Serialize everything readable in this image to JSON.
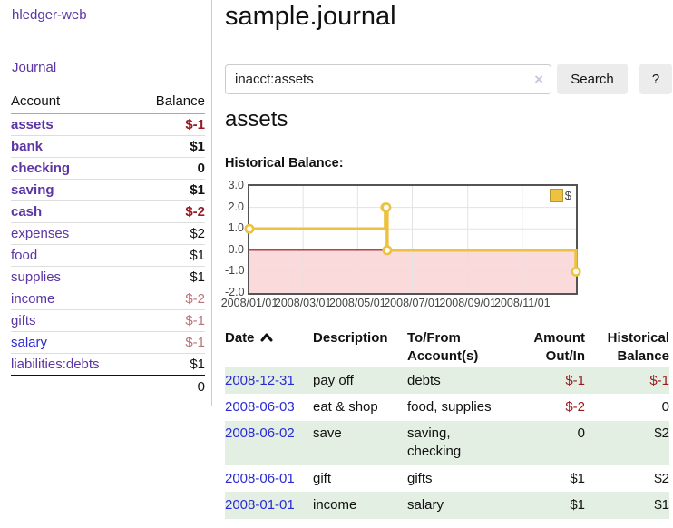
{
  "app": {
    "title": "hledger-web",
    "nav_journal": "Journal"
  },
  "sidebar": {
    "header": {
      "account": "Account",
      "balance": "Balance"
    },
    "rows": [
      {
        "name": "assets",
        "balance": "$-1",
        "indent": 1,
        "bold": true,
        "link": "purple"
      },
      {
        "name": "bank",
        "balance": "$1",
        "indent": 2,
        "bold": true,
        "link": "purple"
      },
      {
        "name": "checking",
        "balance": "0",
        "indent": 3,
        "bold": true,
        "link": "purple"
      },
      {
        "name": "saving",
        "balance": "$1",
        "indent": 3,
        "bold": true,
        "link": "purple"
      },
      {
        "name": "cash",
        "balance": "$-2",
        "indent": 2,
        "bold": true,
        "link": "purple"
      },
      {
        "name": "expenses",
        "balance": "$2",
        "indent": 1,
        "bold": false,
        "link": "purple"
      },
      {
        "name": "food",
        "balance": "$1",
        "indent": 2,
        "bold": false,
        "link": "purple"
      },
      {
        "name": "supplies",
        "balance": "$1",
        "indent": 2,
        "bold": false,
        "link": "purple"
      },
      {
        "name": "income",
        "balance": "$-2",
        "indent": 1,
        "bold": false,
        "link": "purple"
      },
      {
        "name": "gifts",
        "balance": "$-1",
        "indent": 2,
        "bold": false,
        "link": "purple"
      },
      {
        "name": "salary",
        "balance": "$-1",
        "indent": 2,
        "bold": false,
        "link": "blue"
      },
      {
        "name": "liabilities:debts",
        "balance": "$1",
        "indent": 1,
        "bold": false,
        "link": "purple"
      }
    ],
    "total": "0"
  },
  "header": {
    "title": "sample.journal"
  },
  "search": {
    "value": "inacct:assets",
    "clear_glyph": "×",
    "button_label": "Search",
    "help_label": "?"
  },
  "account_view": {
    "heading": "assets",
    "chart_label": "Historical Balance:"
  },
  "chart_data": {
    "type": "line",
    "title": "Historical Balance",
    "series": [
      {
        "name": "$",
        "color": "#edc240",
        "steps": true,
        "points": [
          {
            "date": "2008-01-01",
            "value": 1
          },
          {
            "date": "2008-06-01",
            "value": 2
          },
          {
            "date": "2008-06-02",
            "value": 2
          },
          {
            "date": "2008-06-03",
            "value": 0
          },
          {
            "date": "2008-12-31",
            "value": -1
          }
        ]
      }
    ],
    "x_range": [
      "2008-01-01",
      "2008-12-31"
    ],
    "ylim": [
      -2,
      3
    ],
    "y_ticks": [
      {
        "value": 3,
        "label": "3.0"
      },
      {
        "value": 2,
        "label": "2.0"
      },
      {
        "value": 1,
        "label": "1.0"
      },
      {
        "value": 0,
        "label": "0.0"
      },
      {
        "value": -1,
        "label": "-1.0"
      },
      {
        "value": -2,
        "label": "-2.0"
      }
    ],
    "x_ticks": [
      {
        "date": "2008-01-01",
        "label": "2008/01/01"
      },
      {
        "date": "2008-03-01",
        "label": "2008/03/01"
      },
      {
        "date": "2008-05-01",
        "label": "2008/05/01"
      },
      {
        "date": "2008-07-01",
        "label": "2008/07/01"
      },
      {
        "date": "2008-09-01",
        "label": "2008/09/01"
      },
      {
        "date": "2008-11-01",
        "label": "2008/11/01"
      }
    ],
    "grid": true,
    "legend_position": "top-right",
    "negative_region_fill": "#fadada",
    "zero_line_color": "#8f0e14",
    "grid_color": "#e3e3e3",
    "border_color": "#545454"
  },
  "register": {
    "columns": [
      {
        "label": "Date",
        "align": "left",
        "sorted": true
      },
      {
        "label": "Description",
        "align": "left"
      },
      {
        "label": "To/From Account(s)",
        "align": "left"
      },
      {
        "label": "Amount Out/In",
        "align": "right"
      },
      {
        "label": "Historical Balance",
        "align": "right"
      }
    ],
    "rows": [
      {
        "date": "2008-12-31",
        "description": "pay off",
        "accounts": "debts",
        "amount": "$-1",
        "balance": "$-1"
      },
      {
        "date": "2008-06-03",
        "description": "eat & shop",
        "accounts": "food, supplies",
        "amount": "$-2",
        "balance": "0"
      },
      {
        "date": "2008-06-02",
        "description": "save",
        "accounts": "saving, checking",
        "amount": "0",
        "balance": "$2"
      },
      {
        "date": "2008-06-01",
        "description": "gift",
        "accounts": "gifts",
        "amount": "$1",
        "balance": "$2"
      },
      {
        "date": "2008-01-01",
        "description": "income",
        "accounts": "salary",
        "amount": "$1",
        "balance": "$1"
      }
    ]
  }
}
